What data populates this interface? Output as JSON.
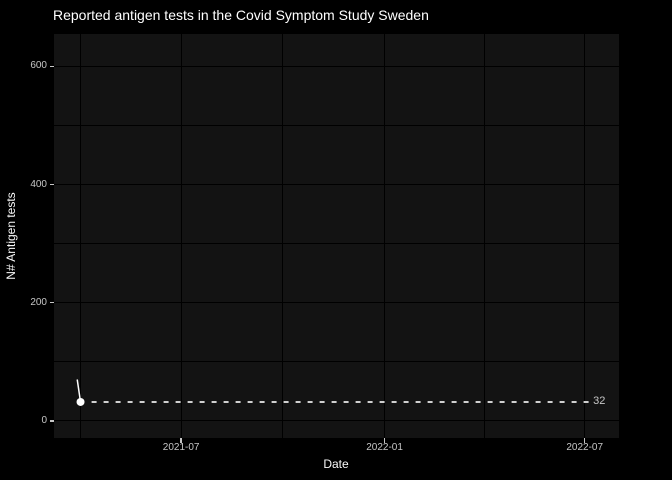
{
  "chart_data": {
    "type": "line",
    "title": "Reported antigen tests in the Covid Symptom Study Sweden",
    "xlabel": "Date",
    "ylabel": "N# Antigen tests",
    "x_domain": [
      "2021-03-08",
      "2022-08-01"
    ],
    "y_domain": [
      -29,
      655
    ],
    "x_ticks": [
      {
        "date": "2021-07-01",
        "label": "2021-07"
      },
      {
        "date": "2022-01-01",
        "label": "2022-01"
      },
      {
        "date": "2022-07-01",
        "label": "2022-07"
      }
    ],
    "x_gridline_dates": [
      "2021-04-01",
      "2021-07-01",
      "2021-10-01",
      "2022-01-01",
      "2022-04-01",
      "2022-07-01"
    ],
    "y_ticks": [
      {
        "value": 0,
        "label": "0"
      },
      {
        "value": 200,
        "label": "200"
      },
      {
        "value": 400,
        "label": "400"
      },
      {
        "value": 600,
        "label": "600"
      }
    ],
    "y_gridline_values": [
      0,
      100,
      200,
      300,
      400,
      500,
      600
    ],
    "series": [
      {
        "name": "reported-antigen-tests",
        "color": "#ffffff",
        "points": [
          {
            "date": "2021-03-29",
            "value": 70
          },
          {
            "date": "2021-04-01",
            "value": 32
          }
        ]
      }
    ],
    "last_point": {
      "date": "2021-04-01",
      "value": 32,
      "marker": "filled-circle",
      "color": "#ffffff"
    },
    "annotation": {
      "type": "dashed-hline",
      "value": 32,
      "label": "32",
      "from_date": "2021-04-11",
      "to_date": "2022-07-05"
    },
    "legend_position": "none",
    "grid": "on",
    "theme": {
      "background": "#000000",
      "panel_fill": "#131313",
      "gridline_color": "#000000",
      "title_color": "#ffffff",
      "axis_title_color": "#fafafa",
      "tick_label_color": "#c6c6c6",
      "series_color": "#ffffff",
      "dashed_line_color": "#ececec",
      "annotation_label_color": "#c6c6c6"
    }
  }
}
